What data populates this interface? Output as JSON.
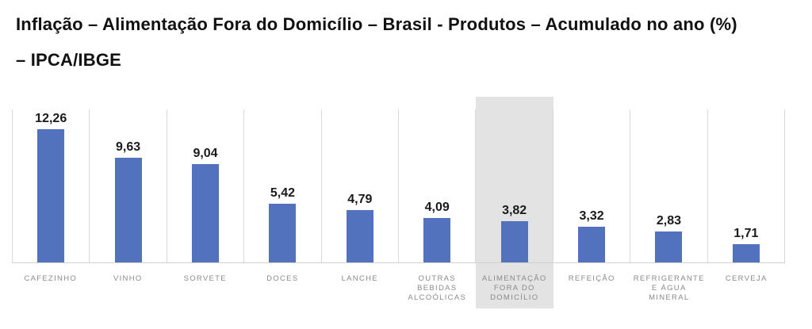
{
  "title": {
    "line1": "Inflação – Alimentação Fora do Domicílio – Brasil - Produtos – Acumulado no ano (%)",
    "line2": "– IPCA/IBGE"
  },
  "chart_data": {
    "type": "bar",
    "title": "Inflação – Alimentação Fora do Domicílio – Brasil - Produtos – Acumulado no ano (%) – IPCA/IBGE",
    "categories": [
      "CAFEZINHO",
      "VINHO",
      "SORVETE",
      "DOCES",
      "LANCHE",
      "OUTRAS BEBIDAS ALCOÓLICAS",
      "ALIMENTAÇÃO FORA DO DOMICÍLIO",
      "REFEIÇÃO",
      "REFRIGERANTE E ÁGUA MINERAL",
      "CERVEJA"
    ],
    "category_lines": [
      [
        "CAFEZINHO"
      ],
      [
        "VINHO"
      ],
      [
        "SORVETE"
      ],
      [
        "DOCES"
      ],
      [
        "LANCHE"
      ],
      [
        "OUTRAS",
        "BEBIDAS",
        "ALCOÓLICAS"
      ],
      [
        "ALIMENTAÇÃO",
        "FORA DO",
        "DOMICÍLIO"
      ],
      [
        "REFEIÇÃO"
      ],
      [
        "REFRIGERANTE",
        "E ÁGUA",
        "MINERAL"
      ],
      [
        "CERVEJA"
      ]
    ],
    "values": [
      12.26,
      9.63,
      9.04,
      5.42,
      4.79,
      4.09,
      3.82,
      3.32,
      2.83,
      1.71
    ],
    "value_labels": [
      "12,26",
      "9,63",
      "9,04",
      "5,42",
      "4,79",
      "4,09",
      "3,82",
      "3,32",
      "2,83",
      "1,71"
    ],
    "highlighted_category": "ALIMENTAÇÃO FORA DO DOMICÍLIO",
    "highlight_index": 6,
    "xlabel": "",
    "ylabel": "",
    "ylim": [
      0,
      14.1
    ],
    "grid": "vertical-gridlines-between-categories",
    "legend": "none",
    "colors": {
      "bar": "#5272be",
      "highlight_band": "#e3e3e3",
      "gridline": "#d9d9d9",
      "axis_line": "#d0d0d0",
      "category_label": "#8a8a8a",
      "value_label": "#1a1a1a",
      "title_text": "#111111",
      "background": "#ffffff"
    }
  }
}
